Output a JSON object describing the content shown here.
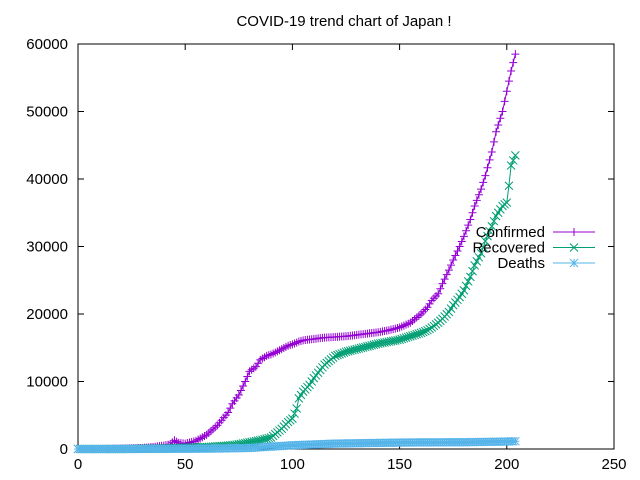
{
  "chart_data": {
    "type": "line",
    "title": "COVID-19 trend chart of Japan !",
    "xlabel": "",
    "ylabel": "",
    "xlim": [
      0,
      250
    ],
    "ylim": [
      0,
      60000
    ],
    "x_ticks": [
      0,
      50,
      100,
      150,
      200,
      250
    ],
    "y_ticks": [
      0,
      10000,
      20000,
      30000,
      40000,
      50000,
      60000
    ],
    "grid": false,
    "legend_position": "right",
    "series": [
      {
        "name": "Confirmed",
        "color": "#9400d3",
        "marker": "plus",
        "x": [
          0,
          10,
          20,
          30,
          35,
          40,
          43,
          45,
          47,
          50,
          55,
          60,
          65,
          70,
          72,
          75,
          78,
          80,
          83,
          85,
          88,
          90,
          92,
          95,
          98,
          100,
          103,
          105,
          110,
          115,
          120,
          125,
          130,
          135,
          140,
          145,
          150,
          155,
          160,
          163,
          165,
          168,
          170,
          173,
          175,
          178,
          180,
          183,
          185,
          188,
          190,
          193,
          195,
          198,
          200,
          202,
          204
        ],
        "y": [
          0,
          0,
          50,
          150,
          300,
          500,
          700,
          1300,
          900,
          800,
          1200,
          2100,
          3500,
          5400,
          6700,
          8000,
          10000,
          11500,
          12200,
          13200,
          13800,
          14000,
          14300,
          14800,
          15300,
          15500,
          15900,
          16100,
          16300,
          16500,
          16600,
          16700,
          16900,
          17100,
          17300,
          17600,
          18000,
          18700,
          20000,
          21000,
          22000,
          23000,
          24500,
          26500,
          28000,
          30000,
          31500,
          34000,
          36000,
          38500,
          40500,
          44000,
          47000,
          50000,
          53000,
          56000,
          58500
        ]
      },
      {
        "name": "Recovered",
        "color": "#009e73",
        "marker": "x",
        "x": [
          0,
          10,
          20,
          30,
          40,
          50,
          60,
          70,
          75,
          80,
          85,
          90,
          92,
          95,
          98,
          100,
          102,
          103,
          105,
          108,
          110,
          115,
          120,
          125,
          130,
          135,
          140,
          145,
          150,
          155,
          160,
          163,
          165,
          168,
          170,
          173,
          175,
          178,
          180,
          183,
          185,
          188,
          190,
          193,
          195,
          198,
          200,
          201,
          202,
          204
        ],
        "y": [
          0,
          0,
          0,
          50,
          100,
          200,
          300,
          500,
          700,
          1000,
          1300,
          1700,
          2200,
          3000,
          4000,
          4500,
          6000,
          7500,
          8500,
          9500,
          10500,
          12500,
          13800,
          14400,
          14800,
          15200,
          15600,
          15900,
          16200,
          16700,
          17200,
          17600,
          18000,
          18700,
          19300,
          20300,
          21300,
          22500,
          23500,
          25500,
          27200,
          29000,
          30800,
          33000,
          34500,
          36000,
          36500,
          39000,
          42000,
          43500
        ]
      },
      {
        "name": "Deaths",
        "color": "#56b4e9",
        "marker": "star",
        "x": [
          0,
          20,
          40,
          60,
          80,
          100,
          120,
          140,
          150,
          160,
          170,
          180,
          190,
          200,
          204
        ],
        "y": [
          0,
          0,
          20,
          50,
          150,
          550,
          800,
          900,
          950,
          980,
          990,
          1000,
          1050,
          1100,
          1150
        ]
      }
    ]
  }
}
